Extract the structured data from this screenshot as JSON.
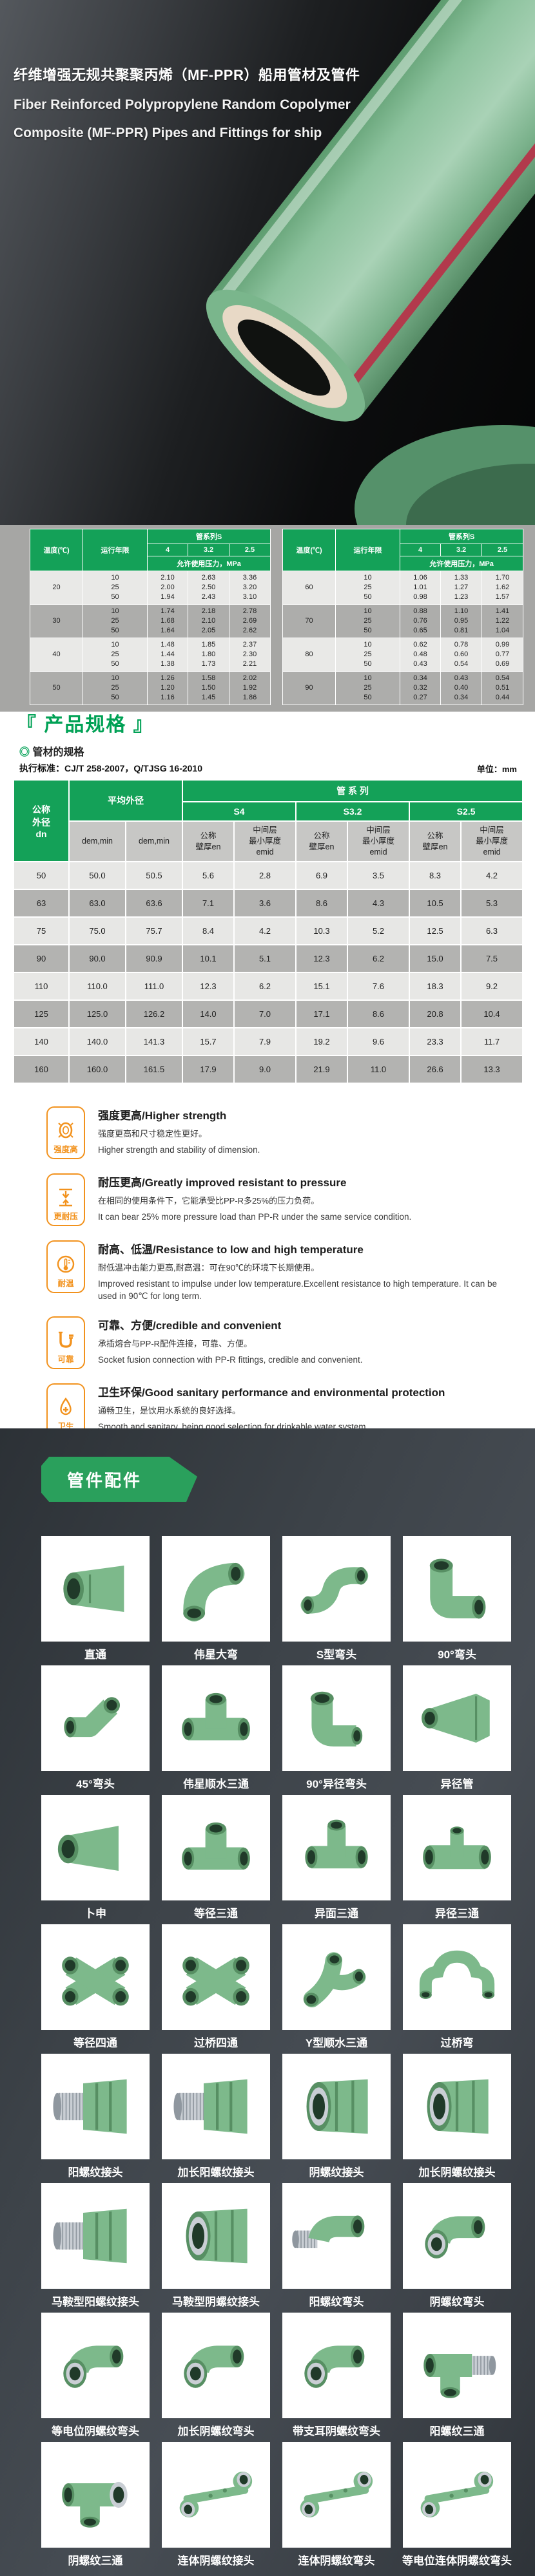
{
  "hero": {
    "title_cn": "纤维增强无规共聚聚丙烯（MF-PPR）船用管材及管件",
    "title_en_line1": "Fiber Reinforced Polypropylene Random Copolymer",
    "title_en_line2": "Composite (MF-PPR) Pipes and Fittings for ship",
    "photo": "green-ppr-pipe-photo"
  },
  "colors": {
    "table_header_green": "#14a158",
    "section_title_green": "#00a155",
    "banner_green": "#2aa05c",
    "feature_orange": "#f2921d",
    "dark_section": "#3d4349"
  },
  "pressure": {
    "headers": {
      "temp": "温度(℃)",
      "years": "运行年限",
      "series": "管系列S",
      "series_cols": [
        "4",
        "3.2",
        "2.5"
      ],
      "pressure": "允许使用压力，MPa"
    },
    "left_groups": [
      {
        "temp": "20",
        "years": [
          "10",
          "25",
          "50"
        ],
        "values": [
          [
            "2.10",
            "2.63",
            "3.36"
          ],
          [
            "2.00",
            "2.50",
            "3.20"
          ],
          [
            "1.94",
            "2.43",
            "3.10"
          ]
        ]
      },
      {
        "temp": "30",
        "years": [
          "10",
          "25",
          "50"
        ],
        "values": [
          [
            "1.74",
            "2.18",
            "2.78"
          ],
          [
            "1.68",
            "2.10",
            "2.69"
          ],
          [
            "1.64",
            "2.05",
            "2.62"
          ]
        ]
      },
      {
        "temp": "40",
        "years": [
          "10",
          "25",
          "50"
        ],
        "values": [
          [
            "1.48",
            "1.85",
            "2.37"
          ],
          [
            "1.44",
            "1.80",
            "2.30"
          ],
          [
            "1.38",
            "1.73",
            "2.21"
          ]
        ]
      },
      {
        "temp": "50",
        "years": [
          "10",
          "25",
          "50"
        ],
        "values": [
          [
            "1.26",
            "1.58",
            "2.02"
          ],
          [
            "1.20",
            "1.50",
            "1.92"
          ],
          [
            "1.16",
            "1.45",
            "1.86"
          ]
        ]
      }
    ],
    "right_groups": [
      {
        "temp": "60",
        "years": [
          "10",
          "25",
          "50"
        ],
        "values": [
          [
            "1.06",
            "1.33",
            "1.70"
          ],
          [
            "1.01",
            "1.27",
            "1.62"
          ],
          [
            "0.98",
            "1.23",
            "1.57"
          ]
        ]
      },
      {
        "temp": "70",
        "years": [
          "10",
          "25",
          "50"
        ],
        "values": [
          [
            "0.88",
            "1.10",
            "1.41"
          ],
          [
            "0.76",
            "0.95",
            "1.22"
          ],
          [
            "0.65",
            "0.81",
            "1.04"
          ]
        ]
      },
      {
        "temp": "80",
        "years": [
          "10",
          "25",
          "50"
        ],
        "values": [
          [
            "0.62",
            "0.78",
            "0.99"
          ],
          [
            "0.48",
            "0.60",
            "0.77"
          ],
          [
            "0.43",
            "0.54",
            "0.69"
          ]
        ]
      },
      {
        "temp": "90",
        "years": [
          "10",
          "25",
          "50"
        ],
        "values": [
          [
            "0.34",
            "0.43",
            "0.54"
          ],
          [
            "0.32",
            "0.40",
            "0.51"
          ],
          [
            "0.27",
            "0.34",
            "0.44"
          ]
        ]
      }
    ]
  },
  "spec": {
    "title": "『 产品规格 』",
    "subsection_mark": "◎",
    "subsection": "管材的规格",
    "standard": "执行标准：CJ/T 258-2007，Q/TJSG 16-2010",
    "unit": "单位：mm",
    "table": {
      "dn": "公称\n外径\ndn",
      "avg": "平均外径",
      "series_group": "管 系 列",
      "series": [
        "S4",
        "S3.2",
        "S2.5"
      ],
      "dem": [
        "dem,min",
        "dem,min"
      ],
      "wall": "公称\n壁厚en",
      "mid": "中间层\n最小厚度\nemid",
      "rows": [
        [
          "50",
          "50.0",
          "50.5",
          "5.6",
          "2.8",
          "6.9",
          "3.5",
          "8.3",
          "4.2"
        ],
        [
          "63",
          "63.0",
          "63.6",
          "7.1",
          "3.6",
          "8.6",
          "4.3",
          "10.5",
          "5.3"
        ],
        [
          "75",
          "75.0",
          "75.7",
          "8.4",
          "4.2",
          "10.3",
          "5.2",
          "12.5",
          "6.3"
        ],
        [
          "90",
          "90.0",
          "90.9",
          "10.1",
          "5.1",
          "12.3",
          "6.2",
          "15.0",
          "7.5"
        ],
        [
          "110",
          "110.0",
          "111.0",
          "12.3",
          "6.2",
          "15.1",
          "7.6",
          "18.3",
          "9.2"
        ],
        [
          "125",
          "125.0",
          "126.2",
          "14.0",
          "7.0",
          "17.1",
          "8.6",
          "20.8",
          "10.4"
        ],
        [
          "140",
          "140.0",
          "141.3",
          "15.7",
          "7.9",
          "19.2",
          "9.6",
          "23.3",
          "11.7"
        ],
        [
          "160",
          "160.0",
          "161.5",
          "17.9",
          "9.0",
          "21.9",
          "11.0",
          "26.6",
          "13.3"
        ]
      ]
    }
  },
  "features": [
    {
      "icon": "pipe-ring-icon",
      "icon_label": "强度高",
      "title": "强度更高/Higher strength",
      "desc_cn": "强度更高和尺寸稳定性更好。",
      "desc_en": "Higher strength and stability of dimension."
    },
    {
      "icon": "pressure-arrows-icon",
      "icon_label": "更耐压",
      "title": "耐压更高/Greatly improved resistant to pressure",
      "desc_cn": "在相同的使用条件下，它能承受比PP-R多25%的压力负荷。",
      "desc_en": "It can bear 25% more pressure load than PP-R under the same service condition."
    },
    {
      "icon": "thermometer-icon",
      "icon_label": "耐温",
      "title": "耐高、低温/Resistance to low and high temperature",
      "desc_cn": "耐低温冲击能力更高,耐高温：可在90℃的环境下长期使用。",
      "desc_en": "Improved resistant to impulse under low temperature.Excellent resistance to high temperature. It can be used in 90℃ for long term."
    },
    {
      "icon": "pipe-joint-icon",
      "icon_label": "可靠",
      "title": "可靠、方便/credible and convenient",
      "desc_cn": "承插熔合与PP-R配件连接，可靠、方便。",
      "desc_en": "Socket fusion connection with PP-R fittings, credible and convenient."
    },
    {
      "icon": "water-drop-icon",
      "icon_label": "卫生",
      "title": "卫生环保/Good sanitary performance and environmental protection",
      "desc_cn": "通畅卫生，是饮用水系统的良好选择。",
      "desc_en": "Smooth and sanitary, being good selection for drinkable water system."
    }
  ],
  "fittings": {
    "banner": "管件配件",
    "items": [
      {
        "label": "直通",
        "shape": "coupling"
      },
      {
        "label": "伟星大弯",
        "shape": "bend"
      },
      {
        "label": "S型弯头",
        "shape": "sbend"
      },
      {
        "label": "90°弯头",
        "shape": "elbow"
      },
      {
        "label": "45°弯头",
        "shape": "elbow45"
      },
      {
        "label": "伟星顺水三通",
        "shape": "tee"
      },
      {
        "label": "90°异径弯头",
        "shape": "reducing-elbow"
      },
      {
        "label": "异径管",
        "shape": "reducer"
      },
      {
        "label": "卜申",
        "shape": "socket-reducer"
      },
      {
        "label": "等径三通",
        "shape": "tee"
      },
      {
        "label": "异面三通",
        "shape": "corner-tee"
      },
      {
        "label": "异径三通",
        "shape": "reducing-tee"
      },
      {
        "label": "等径四通",
        "shape": "cross"
      },
      {
        "label": "过桥四通",
        "shape": "cross"
      },
      {
        "label": "Y型顺水三通",
        "shape": "ytee"
      },
      {
        "label": "过桥弯",
        "shape": "bridge"
      },
      {
        "label": "阳螺纹接头",
        "shape": "male"
      },
      {
        "label": "加长阳螺纹接头",
        "shape": "male"
      },
      {
        "label": "阴螺纹接头",
        "shape": "female"
      },
      {
        "label": "加长阴螺纹接头",
        "shape": "female"
      },
      {
        "label": "马鞍型阳螺纹接头",
        "shape": "male"
      },
      {
        "label": "马鞍型阴螺纹接头",
        "shape": "female"
      },
      {
        "label": "阳螺纹弯头",
        "shape": "male-elbow"
      },
      {
        "label": "阴螺纹弯头",
        "shape": "female-elbow"
      },
      {
        "label": "等电位阴螺纹弯头",
        "shape": "female-elbow"
      },
      {
        "label": "加长阴螺纹弯头",
        "shape": "female-elbow"
      },
      {
        "label": "带支耳阴螺纹弯头",
        "shape": "female-elbow"
      },
      {
        "label": "阳螺纹三通",
        "shape": "tee-male"
      },
      {
        "label": "阴螺纹三通",
        "shape": "tee-female"
      },
      {
        "label": "连体阴螺纹接头",
        "shape": "twin"
      },
      {
        "label": "连体阴螺纹弯头",
        "shape": "twin"
      },
      {
        "label": "等电位连体阴螺纹弯头",
        "shape": "twin"
      }
    ]
  }
}
